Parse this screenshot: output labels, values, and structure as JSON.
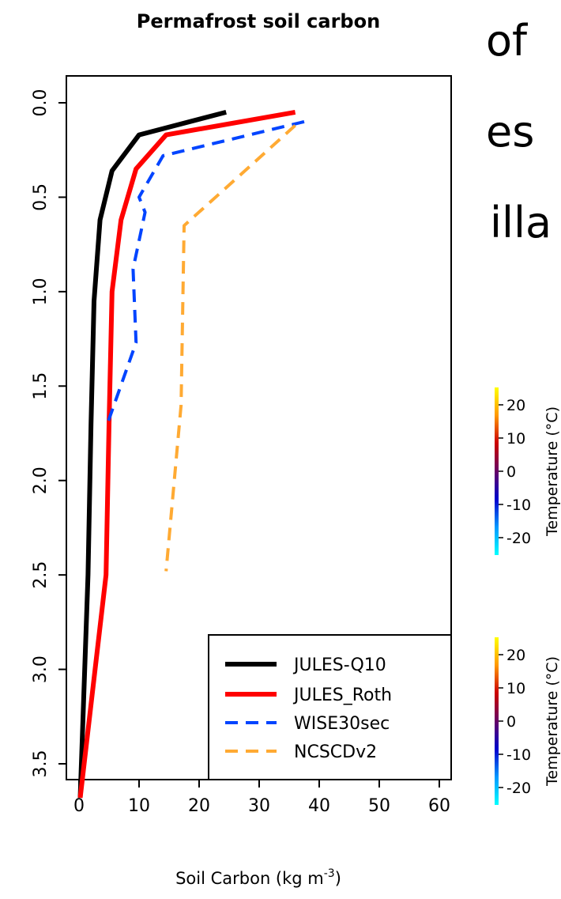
{
  "background_text": [
    "of",
    "es",
    "illa"
  ],
  "chart_data": {
    "type": "line",
    "title": "Permafrost soil carbon",
    "xlabel": "Soil Carbon (kg m",
    "xlabel_sup": "-3",
    "xlabel_close": ")",
    "ylabel": "",
    "xlim": [
      0,
      60
    ],
    "ylim": [
      3.7,
      -0.1
    ],
    "x_reversed": false,
    "y_inverted": true,
    "xticks": [
      0,
      10,
      20,
      30,
      40,
      50,
      60
    ],
    "xtick_labels": [
      "0",
      "10",
      "20",
      "30",
      "40",
      "50",
      "60"
    ],
    "yticks": [
      0.0,
      0.5,
      1.0,
      1.5,
      2.0,
      2.5,
      3.0,
      3.5
    ],
    "ytick_labels": [
      "0.0",
      "0.5",
      "1.0",
      "1.5",
      "2.0",
      "2.5",
      "3.0",
      "3.5"
    ],
    "grid": false,
    "legend_position": "bottom-right",
    "series": [
      {
        "name": "JULES-Q10",
        "color": "#000000",
        "dashed": false,
        "x": [
          24.5,
          10,
          5.5,
          3.5,
          2.5,
          2.0,
          1.5,
          0.2
        ],
        "y": [
          0.05,
          0.17,
          0.36,
          0.62,
          1.05,
          1.7,
          2.5,
          3.68
        ]
      },
      {
        "name": "JULES_Roth",
        "color": "#ff0000",
        "dashed": false,
        "x": [
          36,
          14.5,
          9.5,
          7,
          5.5,
          5.0,
          4.5,
          0.2
        ],
        "y": [
          0.05,
          0.17,
          0.35,
          0.62,
          1.0,
          1.7,
          2.5,
          3.68
        ]
      },
      {
        "name": "WISE30sec",
        "color": "#0044ff",
        "dashed": true,
        "x": [
          37.5,
          14,
          10,
          11,
          9,
          9.5,
          4.5
        ],
        "y": [
          0.1,
          0.28,
          0.5,
          0.58,
          0.88,
          1.27,
          1.72
        ]
      },
      {
        "name": "NCSCDv2",
        "color": "#ffaa33",
        "dashed": true,
        "x": [
          36,
          17.5,
          17,
          14.5
        ],
        "y": [
          0.12,
          0.65,
          1.6,
          2.48
        ]
      }
    ]
  },
  "colorbars": [
    {
      "label": "Temperature (°C)",
      "ticks": [
        "20",
        "10",
        "0",
        "-10",
        "-20"
      ],
      "colors": [
        "#ffff00",
        "#ff9900",
        "#cc0000",
        "#660066",
        "#0000cc",
        "#0099ff",
        "#00ffff"
      ]
    },
    {
      "label": "Temperature (°C)",
      "ticks": [
        "20",
        "10",
        "0",
        "-10",
        "-20"
      ],
      "colors": [
        "#ffff00",
        "#ff9900",
        "#cc0000",
        "#660066",
        "#0000cc",
        "#0099ff",
        "#00ffff"
      ]
    }
  ]
}
